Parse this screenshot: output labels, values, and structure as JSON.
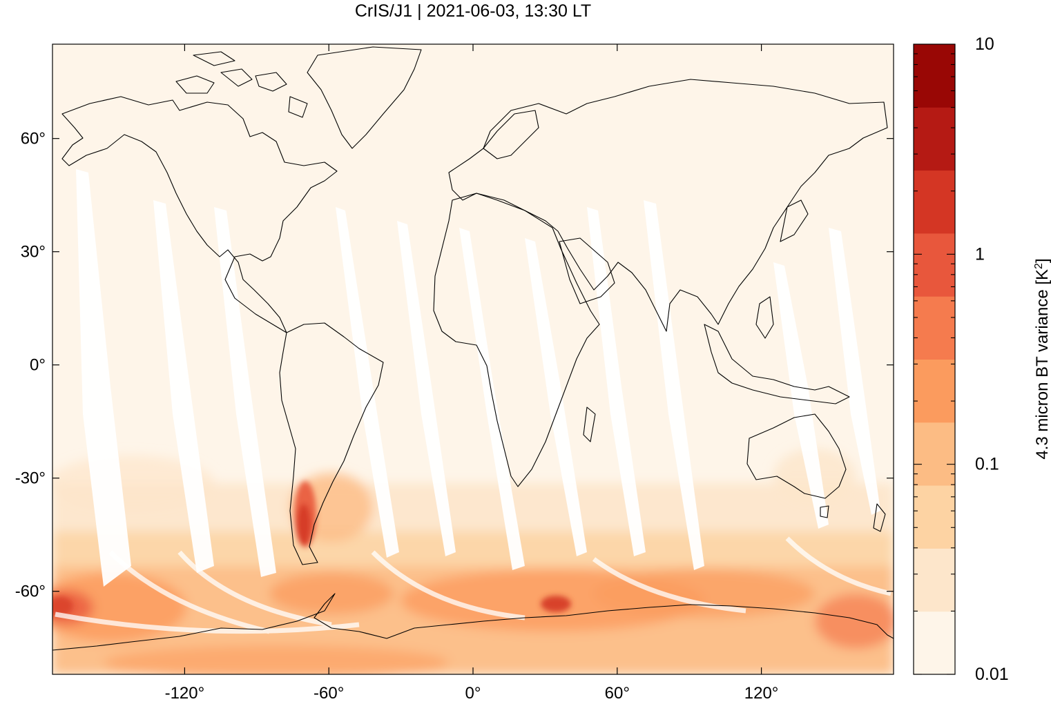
{
  "title": "CrIS/J1 | 2021-06-03, 13:30 LT",
  "map": {
    "projection": "equirectangular",
    "lon_range": [
      -175,
      175
    ],
    "lat_range": [
      -82,
      85
    ],
    "x_ticks": [
      {
        "value": -120,
        "label": "-120°"
      },
      {
        "value": -60,
        "label": "-60°"
      },
      {
        "value": 0,
        "label": "0°"
      },
      {
        "value": 60,
        "label": "60°"
      },
      {
        "value": 120,
        "label": "120°"
      }
    ],
    "y_ticks": [
      {
        "value": 60,
        "label": "60°"
      },
      {
        "value": 30,
        "label": "30°"
      },
      {
        "value": 0,
        "label": "0°"
      },
      {
        "value": -30,
        "label": "-30°"
      },
      {
        "value": -60,
        "label": "-60°"
      }
    ]
  },
  "colorbar": {
    "label": "4.3 micron BT variance [K²]",
    "label_main": "4.3 micron BT variance [K",
    "label_sup": "2",
    "label_close": "]",
    "scale": "log",
    "range": [
      0.01,
      10
    ],
    "tick_labels": [
      {
        "value": 10,
        "label": "10"
      },
      {
        "value": 1,
        "label": "1"
      },
      {
        "value": 0.1,
        "label": "0.1"
      },
      {
        "value": 0.01,
        "label": "0.01"
      }
    ],
    "colors": [
      "#fef5e9",
      "#fde6cb",
      "#fdd3a3",
      "#fcbc84",
      "#fb9b5e",
      "#f57b4e",
      "#e8573c",
      "#d43624",
      "#b51a14",
      "#990705"
    ]
  }
}
